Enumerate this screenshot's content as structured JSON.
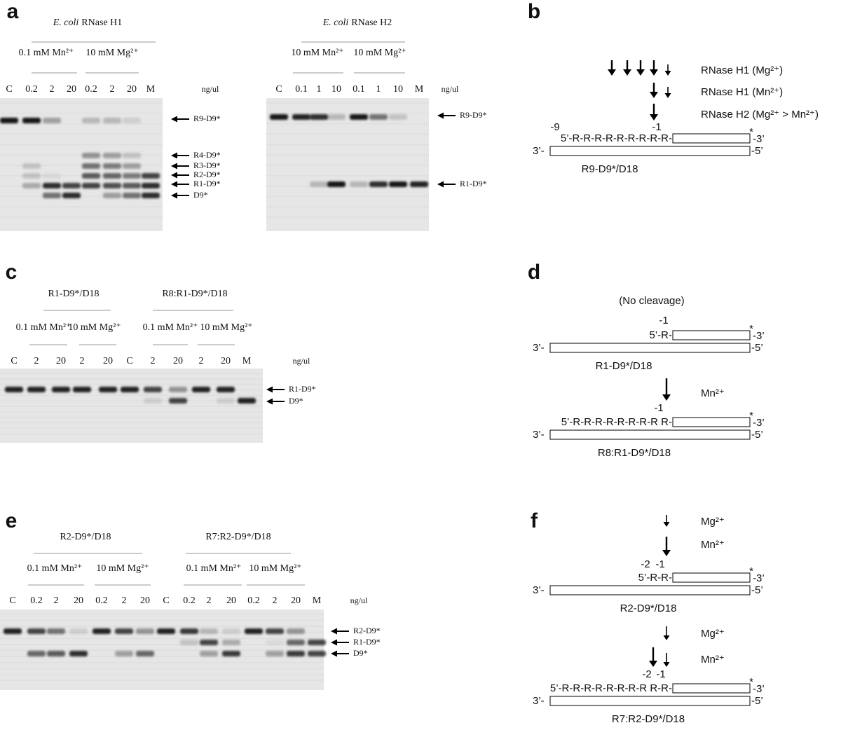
{
  "a": {
    "label": "a",
    "gels": [
      {
        "organism": "E. coli",
        "enzyme": "RNase H1",
        "conditions": [
          "0.1 mM Mn²⁺",
          "10 mM Mg²⁺"
        ],
        "lanes": [
          "C",
          "0.2",
          "2",
          "20",
          "0.2",
          "2",
          "20",
          "M"
        ],
        "unit": "ng/ul",
        "bands": [
          "R9-D9*",
          "R4-D9*",
          "R3-D9*",
          "R2-D9*",
          "R1-D9*",
          "D9*"
        ]
      },
      {
        "organism": "E. coli",
        "enzyme": "RNase H2",
        "conditions": [
          "10 mM Mn²⁺",
          "10 mM Mg²⁺"
        ],
        "lanes": [
          "C",
          "0.1",
          "1",
          "10",
          "0.1",
          "1",
          "10",
          "M"
        ],
        "unit": "ng/ul",
        "bands": [
          "R9-D9*",
          "R1-D9*"
        ]
      }
    ]
  },
  "b": {
    "label": "b",
    "cleavage": [
      "RNase H1 (Mg²⁺)",
      "RNase H1 (Mn²⁺)",
      "RNase H2 (Mg²⁺ > Mn²⁺)"
    ],
    "substrate": {
      "positions": [
        "-9",
        "-1"
      ],
      "top_strand": "5’-R-R-R-R-R-R-R-R-R-",
      "star": "*",
      "top_end": "-3’",
      "bottom_strand": "3’-",
      "bottom_end": "-5’",
      "name": "R9-D9*/D18"
    }
  },
  "c": {
    "label": "c",
    "groups": [
      "R1-D9*/D18",
      "R8:R1-D9*/D18"
    ],
    "conditions": [
      "0.1 mM Mn²⁺",
      "10 mM Mg²⁺",
      "0.1 mM Mn²⁺",
      "10 mM Mg²⁺"
    ],
    "lanes": [
      "C",
      "2",
      "20",
      "2",
      "20",
      "C",
      "2",
      "20",
      "2",
      "20",
      "M"
    ],
    "unit": "ng/ul",
    "bands": [
      "R1-D9*",
      "D9*"
    ]
  },
  "d": {
    "label": "d",
    "note": "(No cleavage)",
    "substrates": [
      {
        "positions": [
          "-1"
        ],
        "top_strand": "5’-R-",
        "star": "*",
        "top_end": "-3’",
        "bottom_strand": "3’-",
        "bottom_end": "-5’",
        "name": "R1-D9*/D18"
      },
      {
        "cleavage": [
          "Mn²⁺"
        ],
        "positions": [
          "-1"
        ],
        "top_strand": "5’-R-R-R-R-R-R-R-R R-",
        "star": "*",
        "top_end": "-3’",
        "bottom_strand": "3’-",
        "bottom_end": "-5’",
        "name": "R8:R1-D9*/D18"
      }
    ]
  },
  "e": {
    "label": "e",
    "groups": [
      "R2-D9*/D18",
      "R7:R2-D9*/D18"
    ],
    "conditions": [
      "0.1 mM Mn²⁺",
      "10 mM Mg²⁺",
      "0.1 mM Mn²⁺",
      "10 mM Mg²⁺"
    ],
    "lanes": [
      "C",
      "0.2",
      "2",
      "20",
      "0.2",
      "2",
      "20",
      "C",
      "0.2",
      "2",
      "20",
      "0.2",
      "2",
      "20",
      "M"
    ],
    "unit": "ng/ul",
    "bands": [
      "R2-D9*",
      "R1-D9*",
      "D9*"
    ]
  },
  "f": {
    "label": "f",
    "substrates": [
      {
        "cleavage": [
          "Mg²⁺",
          "Mn²⁺"
        ],
        "positions": [
          "-2",
          "-1"
        ],
        "top_strand": "5’-R-R-",
        "star": "*",
        "top_end": "-3’",
        "bottom_strand": "3’-",
        "bottom_end": "-5’",
        "name": "R2-D9*/D18"
      },
      {
        "cleavage": [
          "Mg²⁺",
          "Mn²⁺"
        ],
        "positions": [
          "-2",
          "-1"
        ],
        "top_strand": "5’-R-R-R-R-R-R-R-R R-R-",
        "star": "*",
        "top_end": "-3’",
        "bottom_strand": "3’-",
        "bottom_end": "-5’",
        "name": "R7:R2-D9*/D18"
      }
    ]
  }
}
